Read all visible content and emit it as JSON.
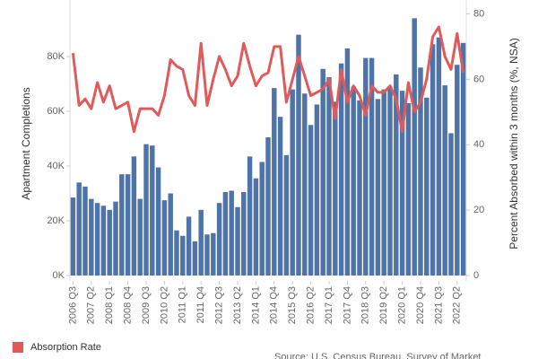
{
  "chart_data": {
    "type": "bar-line",
    "y_label": "Apartment Completions",
    "y2_label": "Percent Absorbed within 3 months (%, NSA)",
    "source": "Source: U.S. Census Bureau, Survey of Market",
    "categories": [
      "2006 Q3",
      null,
      null,
      "2007 Q2",
      null,
      null,
      "2008 Q1",
      null,
      null,
      "2008 Q4",
      null,
      null,
      "2009 Q3",
      null,
      null,
      "2010 Q2",
      null,
      null,
      "2011 Q1",
      null,
      null,
      "2011 Q4",
      null,
      null,
      "2012 Q3",
      null,
      null,
      "2013 Q2",
      null,
      null,
      "2014 Q1",
      null,
      null,
      "2014 Q4",
      null,
      null,
      "2015 Q3",
      null,
      null,
      "2016 Q2",
      null,
      null,
      "2017 Q1",
      null,
      null,
      "2017 Q4",
      null,
      null,
      "2018 Q3",
      null,
      null,
      "2019 Q2",
      null,
      null,
      "2020 Q1",
      null,
      null,
      "2020 Q4",
      null,
      null,
      "2021 Q3",
      null,
      null,
      "2022 Q2",
      null
    ],
    "series": [
      {
        "type": "bar",
        "color": "#4e73a6",
        "values": [
          28500,
          34000,
          32500,
          28000,
          26500,
          25500,
          24000,
          27000,
          37000,
          37000,
          43500,
          28000,
          48000,
          47500,
          39500,
          27500,
          30000,
          16500,
          14500,
          21500,
          12500,
          24000,
          15000,
          15500,
          26500,
          30500,
          31000,
          25000,
          30500,
          43500,
          35500,
          41500,
          50500,
          68500,
          58000,
          44000,
          68000,
          88000,
          66500,
          55000,
          62500,
          75500,
          72500,
          63500,
          77500,
          83000,
          69000,
          64000,
          79500,
          79500,
          64500,
          68000,
          69000,
          73500,
          67500,
          63000,
          94000,
          76000,
          65000,
          84500,
          87000,
          69500,
          52000,
          77000,
          85000
        ]
      },
      {
        "type": "line",
        "name": "Absorption Rate",
        "color": "#e05a5c",
        "axis": "y2",
        "values": [
          68,
          52,
          54,
          51,
          59,
          53,
          58,
          51,
          52,
          53,
          44,
          51,
          51,
          51,
          49,
          55,
          66,
          64,
          63,
          55,
          52,
          71,
          52,
          60,
          67,
          63,
          58,
          61,
          71,
          64,
          58,
          61,
          62,
          70,
          70,
          53,
          60,
          67,
          61,
          55,
          56,
          57,
          60,
          48,
          63,
          53,
          58,
          55,
          49,
          58,
          56,
          56,
          58,
          54,
          44,
          59,
          50,
          53,
          60,
          73,
          76,
          67,
          63,
          74,
          62
        ]
      }
    ],
    "ylim": [
      0,
      97400
    ],
    "yticks": [
      {
        "value": 0,
        "label": "0K"
      },
      {
        "value": 20000,
        "label": "20K"
      },
      {
        "value": 40000,
        "label": "40K"
      },
      {
        "value": 60000,
        "label": "60K"
      },
      {
        "value": 80000,
        "label": "80K"
      }
    ],
    "y2lim": [
      0,
      81.5
    ],
    "y2ticks": [
      0,
      20,
      40,
      60,
      80
    ],
    "legend": "bottom-left"
  }
}
